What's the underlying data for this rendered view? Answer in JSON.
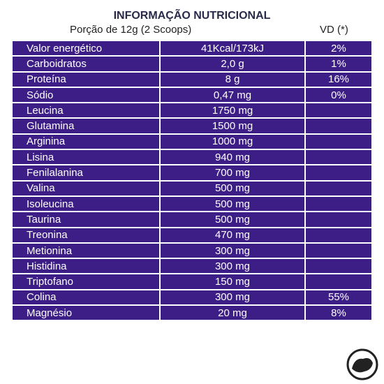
{
  "header": {
    "title": "INFORMAÇÃO NUTRICIONAL",
    "portion": "Porção de 12g (2 Scoops)",
    "vd_label": "VD (*)"
  },
  "table": {
    "rows": [
      {
        "name": "Valor energético",
        "amount": "41Kcal/173kJ",
        "vd": "2%"
      },
      {
        "name": "Carboidratos",
        "amount": "2,0 g",
        "vd": "1%"
      },
      {
        "name": "Proteína",
        "amount": "8 g",
        "vd": "16%"
      },
      {
        "name": "Sódio",
        "amount": "0,47 mg",
        "vd": "0%"
      },
      {
        "name": "Leucina",
        "amount": "1750 mg"
      },
      {
        "name": "Glutamina",
        "amount": "1500 mg"
      },
      {
        "name": "Arginina",
        "amount": "1000 mg"
      },
      {
        "name": "Lisina",
        "amount": "940 mg"
      },
      {
        "name": "Fenilalanina",
        "amount": "700 mg"
      },
      {
        "name": "Valina",
        "amount": "500 mg"
      },
      {
        "name": "Isoleucina",
        "amount": "500 mg"
      },
      {
        "name": "Taurina",
        "amount": "500 mg"
      },
      {
        "name": "Treonina",
        "amount": "470 mg"
      },
      {
        "name": "Metionina",
        "amount": "300 mg"
      },
      {
        "name": "Histidina",
        "amount": "300 mg"
      },
      {
        "name": "Triptofano",
        "amount": "150 mg"
      },
      {
        "name": "Colina",
        "amount": "300 mg",
        "vd": "55%"
      },
      {
        "name": "Magnésio",
        "amount": "20 mg",
        "vd": "8%"
      }
    ]
  }
}
